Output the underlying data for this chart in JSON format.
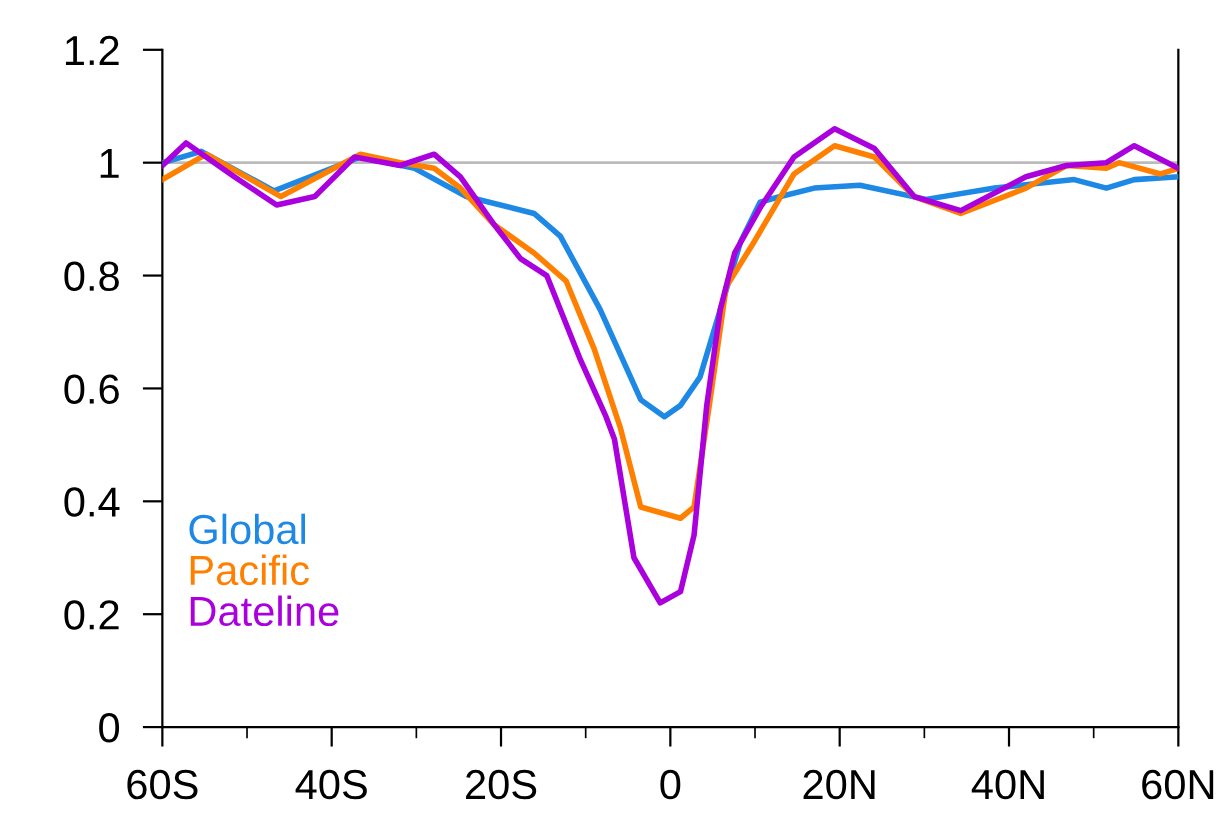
{
  "chart_data": {
    "type": "line",
    "xlim": [
      -60,
      60
    ],
    "xticks": [
      {
        "value": -60,
        "label": "60S"
      },
      {
        "value": -50,
        "label": null
      },
      {
        "value": -40,
        "label": "40S"
      },
      {
        "value": -30,
        "label": null
      },
      {
        "value": -20,
        "label": "20S"
      },
      {
        "value": -10,
        "label": null
      },
      0,
      {
        "value": 10,
        "label": null
      },
      {
        "value": 20,
        "label": "20N"
      },
      {
        "value": 30,
        "label": null
      },
      {
        "value": 40,
        "label": "40N"
      },
      {
        "value": 50,
        "label": null
      },
      {
        "value": 60,
        "label": "60N"
      }
    ],
    "ylim": [
      0,
      1.2
    ],
    "yticks": [
      0,
      0.2,
      0.4,
      0.6,
      0.8,
      1,
      1.2
    ],
    "grid": false,
    "legend": "bottom left",
    "ref_lines": [
      {
        "axis": "y",
        "value": 1,
        "color": "#bbbbbb"
      }
    ],
    "series": [
      {
        "name": "Global",
        "color": "#1e88e5",
        "x": [
          -60,
          -55.4,
          -46.8,
          -36.6,
          -30.2,
          -24.1,
          -16.1,
          -13,
          -8.3,
          -3.5,
          -0.7,
          1.2,
          3.5,
          5.9,
          8.3,
          10.6,
          13,
          17,
          22.4,
          30.2,
          38.3,
          47.7,
          51.5,
          54.8,
          60
        ],
        "values": [
          1.0,
          1.02,
          0.95,
          1.01,
          0.99,
          0.94,
          0.91,
          0.87,
          0.74,
          0.58,
          0.55,
          0.57,
          0.62,
          0.74,
          0.86,
          0.93,
          0.94,
          0.955,
          0.96,
          0.935,
          0.955,
          0.97,
          0.955,
          0.97,
          0.975
        ]
      },
      {
        "name": "Pacific",
        "color": "#ff8000",
        "x": [
          -60,
          -54.8,
          -46,
          -36.6,
          -31.9,
          -27.9,
          -24.8,
          -20.8,
          -16.1,
          -12.3,
          -9,
          -5.9,
          -3.5,
          1.2,
          2.8,
          4.6,
          6.6,
          9.9,
          14.6,
          19.4,
          24.1,
          28.8,
          34.3,
          42,
          46.8,
          51.5,
          53,
          57.9,
          60
        ],
        "values": [
          0.97,
          1.015,
          0.94,
          1.015,
          1.0,
          0.99,
          0.955,
          0.89,
          0.84,
          0.79,
          0.67,
          0.53,
          0.39,
          0.37,
          0.39,
          0.57,
          0.78,
          0.86,
          0.98,
          1.03,
          1.01,
          0.94,
          0.91,
          0.955,
          0.995,
          0.99,
          1.0,
          0.98,
          0.99
        ]
      },
      {
        "name": "Dateline",
        "color": "#aa00dd",
        "x": [
          -60,
          -57.2,
          -51.5,
          -46.5,
          -42,
          -37.3,
          -31.9,
          -27.9,
          -24.8,
          -20.8,
          -17.7,
          -14.6,
          -10.6,
          -7.6,
          -6.6,
          -4.3,
          -1.2,
          1.2,
          2.8,
          4.3,
          5.9,
          7.6,
          10.6,
          14.6,
          19.4,
          24.1,
          28.8,
          34.3,
          42,
          46.8,
          51.5,
          54.8,
          60
        ],
        "values": [
          0.995,
          1.035,
          0.975,
          0.925,
          0.94,
          1.01,
          0.995,
          1.015,
          0.975,
          0.89,
          0.83,
          0.8,
          0.65,
          0.55,
          0.51,
          0.3,
          0.22,
          0.24,
          0.34,
          0.57,
          0.74,
          0.84,
          0.92,
          1.01,
          1.06,
          1.025,
          0.94,
          0.915,
          0.975,
          0.995,
          1.0,
          1.03,
          0.99
        ]
      }
    ]
  }
}
